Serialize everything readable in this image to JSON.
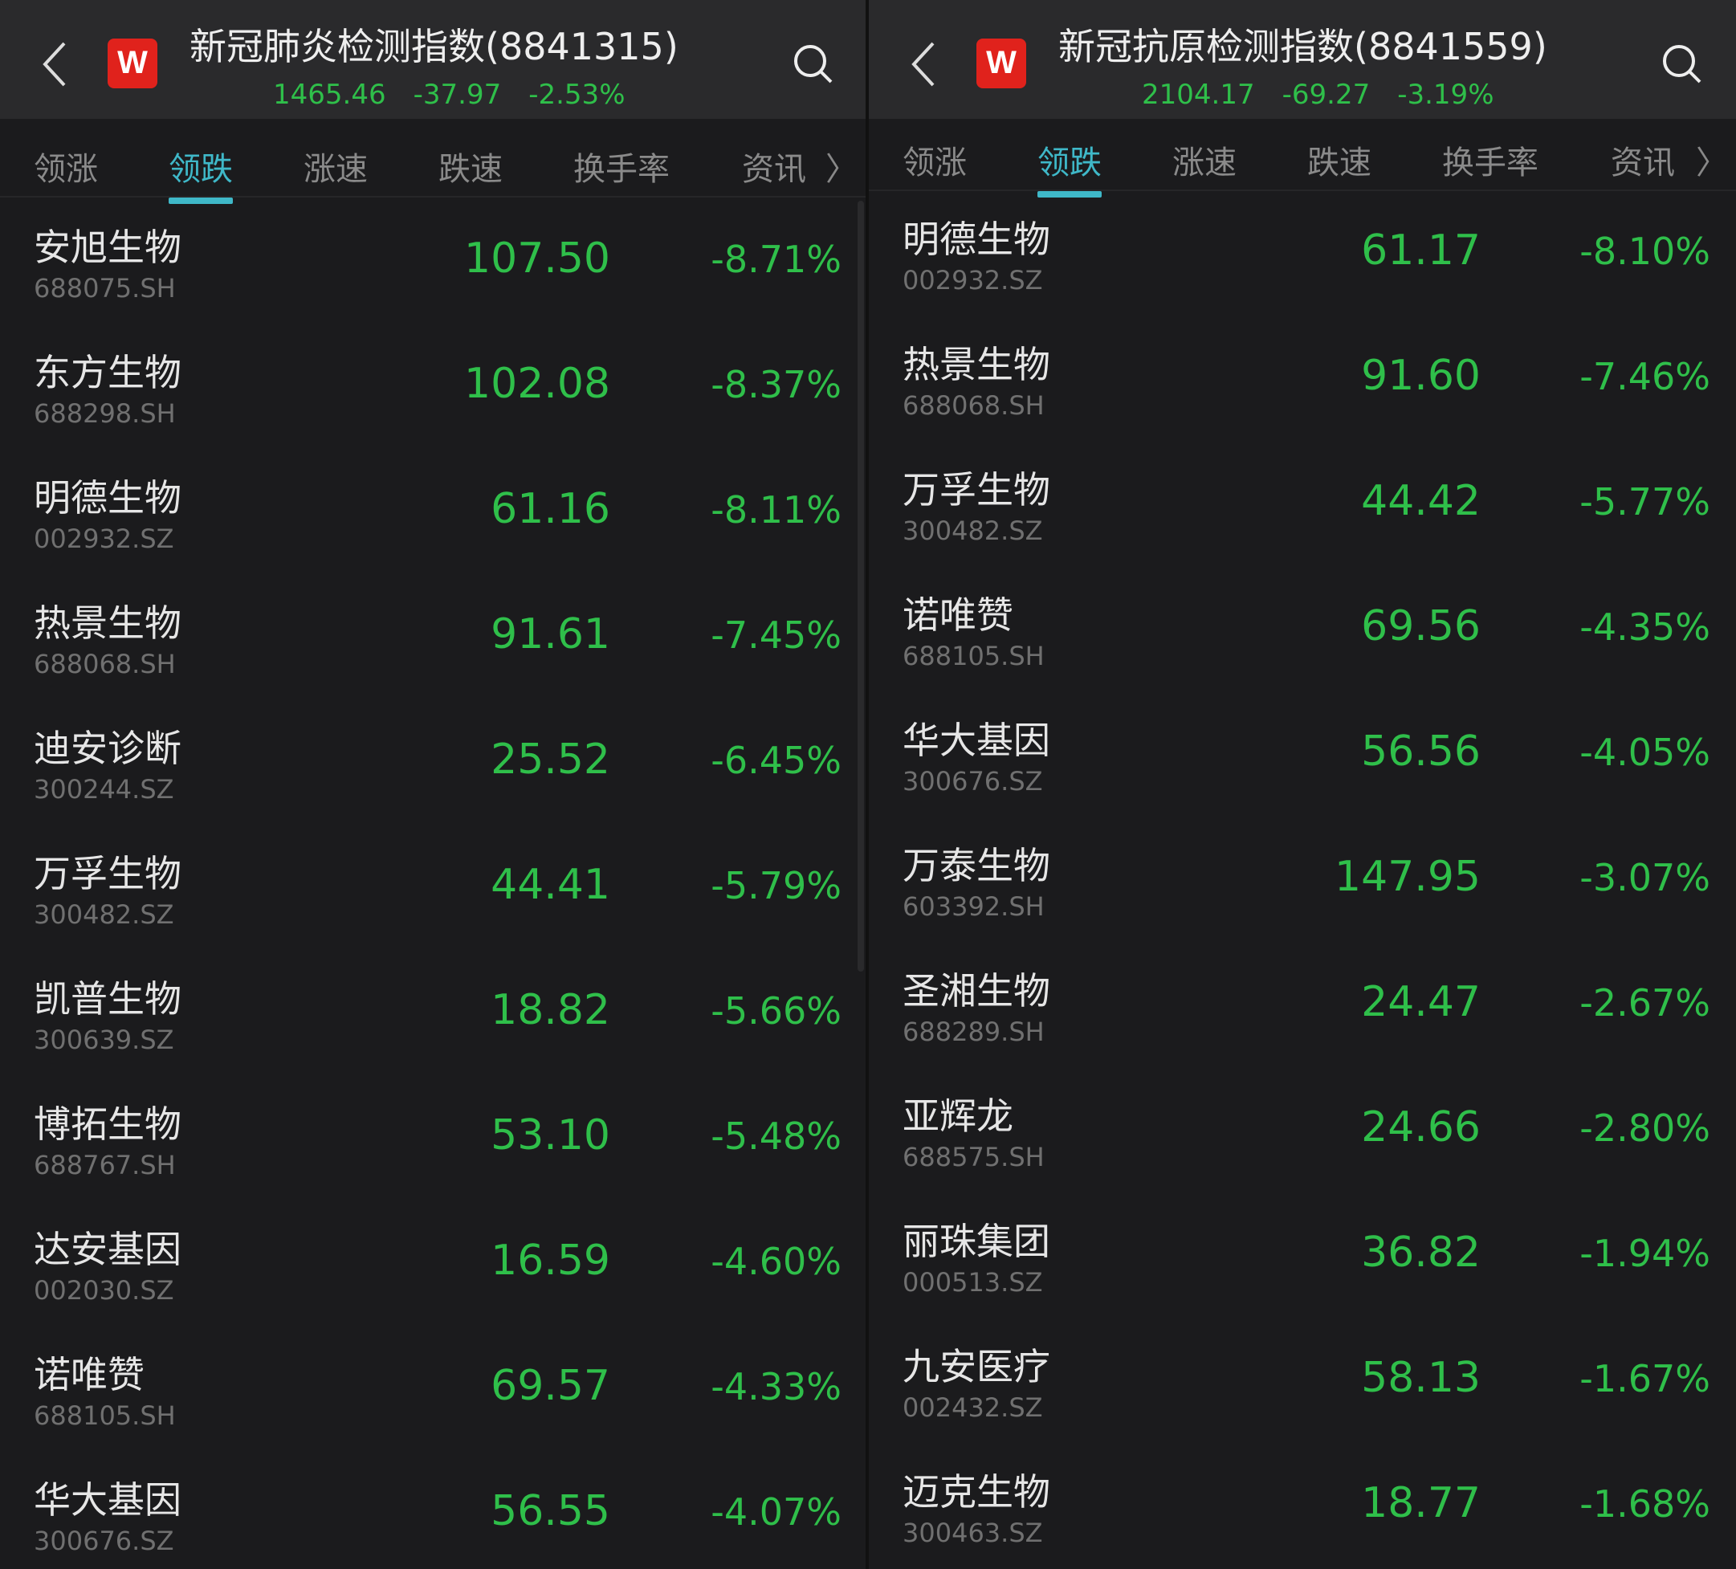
{
  "colors": {
    "down": "#2fbf4a",
    "accent": "#3fb8c8",
    "logo": "#e0221c"
  },
  "tabs": [
    "领涨",
    "领跌",
    "涨速",
    "跌速",
    "换手率",
    "资讯"
  ],
  "active_tab": "领跌",
  "left": {
    "title": "新冠肺炎检测指数(8841315)",
    "logo": "W",
    "price": "1465.46",
    "change": "-37.97",
    "change_pct": "-2.53%",
    "rows": [
      {
        "name": "安旭生物",
        "code": "688075.SH",
        "price": "107.50",
        "pct": "-8.71%"
      },
      {
        "name": "东方生物",
        "code": "688298.SH",
        "price": "102.08",
        "pct": "-8.37%"
      },
      {
        "name": "明德生物",
        "code": "002932.SZ",
        "price": "61.16",
        "pct": "-8.11%"
      },
      {
        "name": "热景生物",
        "code": "688068.SH",
        "price": "91.61",
        "pct": "-7.45%"
      },
      {
        "name": "迪安诊断",
        "code": "300244.SZ",
        "price": "25.52",
        "pct": "-6.45%"
      },
      {
        "name": "万孚生物",
        "code": "300482.SZ",
        "price": "44.41",
        "pct": "-5.79%"
      },
      {
        "name": "凯普生物",
        "code": "300639.SZ",
        "price": "18.82",
        "pct": "-5.66%"
      },
      {
        "name": "博拓生物",
        "code": "688767.SH",
        "price": "53.10",
        "pct": "-5.48%"
      },
      {
        "name": "达安基因",
        "code": "002030.SZ",
        "price": "16.59",
        "pct": "-4.60%"
      },
      {
        "name": "诺唯赞",
        "code": "688105.SH",
        "price": "69.57",
        "pct": "-4.33%"
      },
      {
        "name": "华大基因",
        "code": "300676.SZ",
        "price": "56.55",
        "pct": "-4.07%"
      }
    ]
  },
  "right": {
    "title": "新冠抗原检测指数(8841559)",
    "logo": "W",
    "price": "2104.17",
    "change": "-69.27",
    "change_pct": "-3.19%",
    "rows": [
      {
        "name": "明德生物",
        "code": "002932.SZ",
        "price": "61.17",
        "pct": "-8.10%"
      },
      {
        "name": "热景生物",
        "code": "688068.SH",
        "price": "91.60",
        "pct": "-7.46%"
      },
      {
        "name": "万孚生物",
        "code": "300482.SZ",
        "price": "44.42",
        "pct": "-5.77%"
      },
      {
        "name": "诺唯赞",
        "code": "688105.SH",
        "price": "69.56",
        "pct": "-4.35%"
      },
      {
        "name": "华大基因",
        "code": "300676.SZ",
        "price": "56.56",
        "pct": "-4.05%"
      },
      {
        "name": "万泰生物",
        "code": "603392.SH",
        "price": "147.95",
        "pct": "-3.07%"
      },
      {
        "name": "圣湘生物",
        "code": "688289.SH",
        "price": "24.47",
        "pct": "-2.67%"
      },
      {
        "name": "亚辉龙",
        "code": "688575.SH",
        "price": "24.66",
        "pct": "-2.80%"
      },
      {
        "name": "丽珠集团",
        "code": "000513.SZ",
        "price": "36.82",
        "pct": "-1.94%"
      },
      {
        "name": "九安医疗",
        "code": "002432.SZ",
        "price": "58.13",
        "pct": "-1.67%"
      },
      {
        "name": "迈克生物",
        "code": "300463.SZ",
        "price": "18.77",
        "pct": "-1.68%"
      }
    ]
  }
}
